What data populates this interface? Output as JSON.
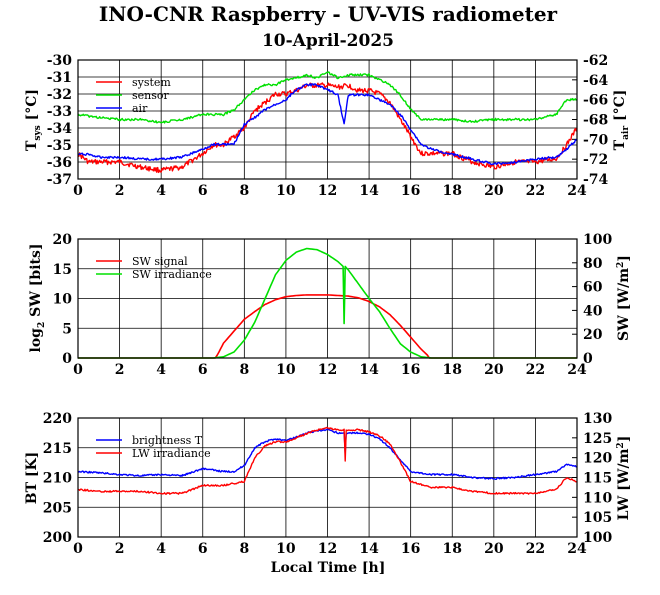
{
  "title": "INO-CNR Raspberry - UV-VIS radiometer",
  "subtitle": "10-April-2025",
  "colors": {
    "red": "#ff0000",
    "green": "#00e000",
    "blue": "#0000ff"
  },
  "chart_data": [
    {
      "type": "line",
      "xlabel": "",
      "ylabel_left": "T_sys [°C]",
      "ylabel_right": "T_air [°C]",
      "xlim": [
        0,
        24
      ],
      "xticks": [
        0,
        2,
        4,
        6,
        8,
        10,
        12,
        14,
        16,
        18,
        20,
        22,
        24
      ],
      "ylim_left": [
        -37,
        -30
      ],
      "yticks_left": [
        -37,
        -36,
        -35,
        -34,
        -33,
        -32,
        -31,
        -30
      ],
      "ylim_right": [
        -74,
        -62
      ],
      "yticks_right": [
        -74,
        -72,
        -70,
        -68,
        -66,
        -64,
        -62
      ],
      "grid": true,
      "legend_position": "top-left",
      "series": [
        {
          "name": "system",
          "axis": "left",
          "color": "#ff0000",
          "x": [
            0,
            0.5,
            1,
            2,
            3,
            4,
            5,
            6,
            6.5,
            7,
            7.5,
            8,
            8.5,
            9,
            9.5,
            10,
            10.5,
            11,
            11.5,
            12,
            12.5,
            13,
            13.5,
            14,
            14.5,
            15,
            15.5,
            16,
            16.5,
            17,
            18,
            19,
            20,
            21,
            22,
            23,
            23.5,
            24
          ],
          "y": [
            -35.5,
            -36,
            -36,
            -36,
            -36.3,
            -36.5,
            -36.3,
            -35.5,
            -35,
            -35,
            -34.5,
            -34,
            -33,
            -32.5,
            -32,
            -32,
            -31.8,
            -31.5,
            -31.5,
            -31.5,
            -31.6,
            -31.5,
            -31.8,
            -31.8,
            -32,
            -32.5,
            -33.5,
            -34.5,
            -35.5,
            -35.5,
            -35.5,
            -36,
            -36.3,
            -36,
            -36,
            -35.8,
            -35,
            -34
          ]
        },
        {
          "name": "sensor",
          "axis": "right",
          "color": "#00e000",
          "x": [
            0,
            1,
            2,
            3,
            4,
            5,
            6,
            7,
            7.5,
            8,
            8.5,
            9,
            9.5,
            10,
            10.5,
            11,
            11.5,
            12,
            12.5,
            13,
            13.5,
            14,
            14.5,
            15,
            15.5,
            16,
            16.5,
            17,
            18,
            19,
            20,
            21,
            22,
            23,
            23.5,
            24
          ],
          "y": [
            -67.5,
            -67.8,
            -68,
            -68,
            -68.3,
            -68,
            -67.5,
            -67.5,
            -67,
            -66,
            -65,
            -64.5,
            -64.5,
            -64,
            -63.8,
            -63.5,
            -63.8,
            -63.2,
            -63.8,
            -63.5,
            -63.5,
            -63.5,
            -64,
            -64.5,
            -65.5,
            -67,
            -68,
            -68,
            -68,
            -68.2,
            -68,
            -68,
            -68,
            -67.5,
            -66,
            -66
          ]
        },
        {
          "name": "air",
          "axis": "right",
          "color": "#0000ff",
          "x": [
            0,
            0.5,
            1,
            2,
            3,
            4,
            5,
            6,
            6.5,
            7,
            7.5,
            8,
            8.5,
            9,
            9.5,
            10,
            10.5,
            11,
            11.5,
            12,
            12.5,
            12.8,
            13,
            13.2,
            13.5,
            14,
            14.5,
            15,
            15.5,
            16,
            16.5,
            17,
            18,
            19,
            20,
            21,
            22,
            23,
            23.5,
            24
          ],
          "y": [
            -71.5,
            -71.5,
            -71.8,
            -71.8,
            -72,
            -72,
            -71.8,
            -71,
            -70.5,
            -70.5,
            -70.5,
            -68.5,
            -67.8,
            -67,
            -66.5,
            -66,
            -65,
            -64.5,
            -64.5,
            -65,
            -65.5,
            -68.5,
            -65.5,
            -65.5,
            -65.5,
            -65.5,
            -66,
            -66.5,
            -67.5,
            -69,
            -70.5,
            -71,
            -71.5,
            -72,
            -72.5,
            -72.3,
            -72,
            -71.8,
            -71,
            -70
          ]
        }
      ]
    },
    {
      "type": "line",
      "xlabel": "",
      "ylabel_left": "log2 SW [bits]",
      "ylabel_right": "SW [W/m2]",
      "xlim": [
        0,
        24
      ],
      "xticks": [
        0,
        2,
        4,
        6,
        8,
        10,
        12,
        14,
        16,
        18,
        20,
        22,
        24
      ],
      "ylim_left": [
        0,
        20
      ],
      "yticks_left": [
        0,
        5,
        10,
        15,
        20
      ],
      "ylim_right": [
        0,
        100
      ],
      "yticks_right": [
        0,
        20,
        40,
        60,
        80,
        100
      ],
      "grid": true,
      "legend_position": "top-left",
      "series": [
        {
          "name": "SW signal",
          "axis": "left",
          "color": "#ff0000",
          "x": [
            0,
            6.6,
            6.7,
            7,
            7.5,
            8,
            8.5,
            9,
            9.5,
            10,
            10.5,
            11,
            11.5,
            12,
            12.5,
            13,
            13.5,
            14,
            14.5,
            15,
            15.5,
            16,
            16.5,
            16.8,
            16.9,
            24
          ],
          "y": [
            0,
            0,
            0.5,
            2.5,
            4.5,
            6.5,
            7.8,
            9,
            9.8,
            10.3,
            10.5,
            10.6,
            10.6,
            10.6,
            10.5,
            10.4,
            10.1,
            9.5,
            8.6,
            7.3,
            5.5,
            3.5,
            1.5,
            0.5,
            0,
            0
          ]
        },
        {
          "name": "SW irradiance",
          "axis": "right",
          "color": "#00e000",
          "x": [
            0,
            6.5,
            7,
            7.5,
            8,
            8.5,
            9,
            9.5,
            10,
            10.5,
            11,
            11.5,
            12,
            12.5,
            12.75,
            12.8,
            12.85,
            13,
            13.5,
            14,
            14.5,
            15,
            15.5,
            16,
            16.5,
            17,
            24
          ],
          "y": [
            0,
            0,
            1,
            5,
            15,
            30,
            50,
            70,
            82,
            89,
            92,
            91,
            87,
            81,
            77,
            29,
            77,
            74,
            62,
            50,
            39,
            25,
            12,
            5,
            1,
            0,
            0
          ]
        }
      ]
    },
    {
      "type": "line",
      "xlabel": "Local Time [h]",
      "ylabel_left": "BT [K]",
      "ylabel_right": "LW [W/m2]",
      "xlim": [
        0,
        24
      ],
      "xticks": [
        0,
        2,
        4,
        6,
        8,
        10,
        12,
        14,
        16,
        18,
        20,
        22,
        24
      ],
      "ylim_left": [
        200,
        220
      ],
      "yticks_left": [
        200,
        205,
        210,
        215,
        220
      ],
      "ylim_right": [
        100,
        130
      ],
      "yticks_right": [
        100,
        105,
        110,
        115,
        120,
        125,
        130
      ],
      "grid": true,
      "legend_position": "top-left",
      "series": [
        {
          "name": "brightness T",
          "axis": "left",
          "color": "#0000ff",
          "x": [
            0,
            1,
            2,
            3,
            4,
            5,
            6,
            7,
            7.5,
            8,
            8.5,
            9,
            9.5,
            10,
            10.5,
            11,
            11.5,
            12,
            12.5,
            12.8,
            12.85,
            12.9,
            13,
            13.5,
            14,
            14.5,
            15,
            15.5,
            16,
            17,
            18,
            19,
            20,
            21,
            22,
            23,
            23.5,
            24
          ],
          "y": [
            211,
            210.8,
            210.5,
            210.3,
            210.5,
            210.3,
            211.5,
            211,
            211,
            212,
            215,
            216,
            216.5,
            216.2,
            216.8,
            217.5,
            217.8,
            218,
            217.5,
            217.5,
            214,
            217.5,
            217.5,
            217.5,
            217.3,
            216.5,
            215,
            213,
            211,
            210.5,
            210.5,
            210,
            209.8,
            210,
            210.5,
            211,
            212.2,
            211.8
          ]
        },
        {
          "name": "LW irradiance",
          "axis": "right",
          "color": "#ff0000",
          "x": [
            0,
            1,
            2,
            3,
            4,
            5,
            6,
            7,
            7.5,
            8,
            8.5,
            9,
            9.5,
            10,
            10.5,
            11,
            11.5,
            12,
            12.5,
            12.8,
            12.85,
            12.9,
            13,
            13.5,
            14,
            14.5,
            15,
            15.5,
            16,
            17,
            18,
            19,
            20,
            21,
            22,
            23,
            23.5,
            24
          ],
          "y": [
            112,
            111.5,
            111.5,
            111.5,
            111,
            111,
            113,
            113,
            113.5,
            114,
            120,
            123,
            124,
            124,
            125,
            126,
            127,
            127.5,
            127,
            127,
            119,
            127,
            127,
            127,
            126.5,
            125.5,
            123.5,
            119,
            114,
            112.5,
            112.5,
            111.5,
            111,
            111,
            111,
            112,
            115,
            114
          ]
        }
      ]
    }
  ]
}
